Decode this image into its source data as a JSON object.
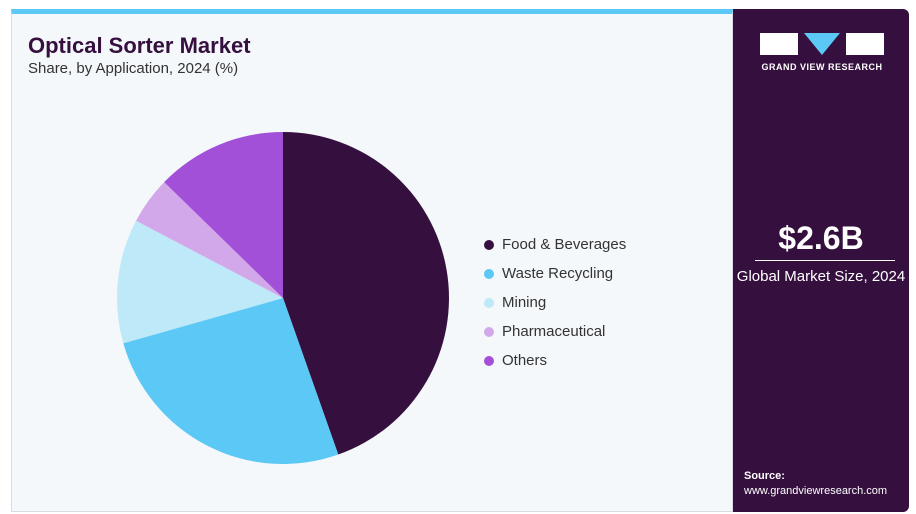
{
  "chart_data": {
    "type": "pie",
    "title": "Optical Sorter Market",
    "subtitle": "Share, by Application, 2024 (%)",
    "categories": [
      "Food & Beverages",
      "Waste Recycling",
      "Mining",
      "Pharmaceutical",
      "Others"
    ],
    "values": [
      44.6,
      26.0,
      12.1,
      4.6,
      12.7
    ],
    "colors": [
      "#35103f",
      "#5bc8f5",
      "#bde9f9",
      "#d3a8ea",
      "#a350d8"
    ],
    "legend_position": "right"
  },
  "sidebar": {
    "brand": "GRAND VIEW RESEARCH",
    "market_size": "$2.6B",
    "market_label": "Global Market Size, 2024",
    "source_label": "Source:",
    "source_url": "www.grandviewresearch.com"
  }
}
